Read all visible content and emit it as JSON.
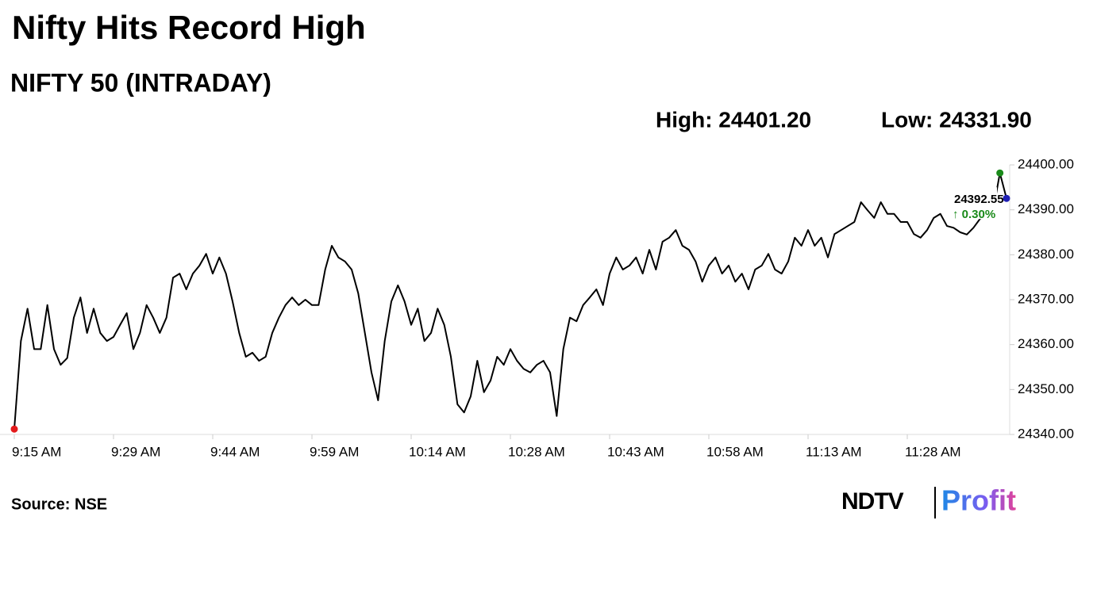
{
  "chart_data": {
    "type": "line",
    "title": "Nifty Hits Record High",
    "subtitle": "NIFTY 50 (INTRADAY)",
    "annotations": {
      "high": "High: 24401.20",
      "low": "Low: 24331.90",
      "last": "24392.55",
      "change": "↑ 0.30%"
    },
    "source": "Source: NSE",
    "logo": {
      "brand": "NDTV",
      "product": "Profit"
    },
    "categories": [
      "9:15 AM",
      null,
      null,
      null,
      null,
      null,
      null,
      null,
      null,
      null,
      null,
      null,
      null,
      null,
      null,
      "9:29 AM",
      null,
      null,
      null,
      null,
      null,
      null,
      null,
      null,
      null,
      null,
      null,
      null,
      null,
      null,
      "9:44 AM",
      null,
      null,
      null,
      null,
      null,
      null,
      null,
      null,
      null,
      null,
      null,
      null,
      null,
      null,
      "9:59 AM",
      null,
      null,
      null,
      null,
      null,
      null,
      null,
      null,
      null,
      null,
      null,
      null,
      null,
      null,
      "10:14 AM",
      null,
      null,
      null,
      null,
      null,
      null,
      null,
      null,
      null,
      null,
      null,
      null,
      null,
      null,
      "10:28 AM",
      null,
      null,
      null,
      null,
      null,
      null,
      null,
      null,
      null,
      null,
      null,
      null,
      null,
      null,
      "10:43 AM",
      null,
      null,
      null,
      null,
      null,
      null,
      null,
      null,
      null,
      null,
      null,
      null,
      null,
      null,
      "10:58 AM",
      null,
      null,
      null,
      null,
      null,
      null,
      null,
      null,
      null,
      null,
      null,
      null,
      null,
      null,
      "11:13 AM",
      null,
      null,
      null,
      null,
      null,
      null,
      null,
      null,
      null,
      null,
      null,
      null,
      null,
      null,
      "11:28 AM",
      null,
      null,
      null,
      null,
      null,
      null,
      null,
      null,
      null,
      null,
      null,
      null,
      null,
      null,
      null
    ],
    "series": [
      {
        "name": "NIFTY 50",
        "color": "#000000",
        "values": [
          24341.2,
          24360.8,
          24368,
          24359,
          24359,
          24368.8,
          24359,
          24355.5,
          24357,
          24366,
          24370.5,
          24362.6,
          24368,
          24362.6,
          24360.8,
          24361.7,
          24364.4,
          24367,
          24359,
          24362.6,
          24368.8,
          24366,
          24362.6,
          24366,
          24374.9,
          24375.8,
          24372.3,
          24375.8,
          24377.6,
          24380.2,
          24375.8,
          24379.4,
          24375.8,
          24369.6,
          24362.6,
          24357.3,
          24358.2,
          24356.4,
          24357.3,
          24362.6,
          24366,
          24368.8,
          24370.5,
          24368.8,
          24370,
          24368.8,
          24368.8,
          24376.7,
          24382,
          24379.4,
          24378.5,
          24376.7,
          24371.4,
          24362.6,
          24353.8,
          24347.6,
          24360.8,
          24369.6,
          24373.2,
          24369.6,
          24364.4,
          24368,
          24360.8,
          24362.6,
          24368,
          24364.4,
          24357.3,
          24346.7,
          24344.9,
          24348.5,
          24356.4,
          24349.4,
          24352,
          24357.3,
          24355.5,
          24359,
          24356.4,
          24354.6,
          24353.8,
          24355.5,
          24356.4,
          24353.8,
          24344.1,
          24359,
          24366,
          24365.2,
          24368.8,
          24370.5,
          24372.3,
          24368.8,
          24375.8,
          24379.4,
          24376.7,
          24377.6,
          24379.4,
          24375.8,
          24381.1,
          24376.7,
          24382.9,
          24383.8,
          24385.5,
          24382,
          24381.1,
          24378.5,
          24374,
          24377.6,
          24379.4,
          24375.8,
          24377.6,
          24374,
          24375.8,
          24372.3,
          24376.7,
          24377.6,
          24380.2,
          24376.7,
          24375.8,
          24378.5,
          24383.8,
          24382,
          24385.5,
          24382,
          24383.8,
          24379.4,
          24384.6,
          24385.5,
          24386.4,
          24387.3,
          24391.7,
          24389.9,
          24388.2,
          24391.7,
          24389.1,
          24389.1,
          24387.3,
          24387.3,
          24384.6,
          24383.8,
          24385.5,
          24388.2,
          24389.1,
          24386.4,
          24386,
          24385,
          24384.5,
          24386,
          24388,
          24389,
          24390,
          24398.2,
          24392.55
        ]
      }
    ],
    "markers": {
      "low_color": "#e31a1c",
      "high_color": "#1a8a1a",
      "last_color": "#1f1fb4"
    },
    "change_color": "#1a8a1a",
    "ylim": [
      24340,
      24400
    ],
    "yticks": [
      {
        "value": 24340,
        "label": "24340.00"
      },
      {
        "value": 24350,
        "label": "24350.00"
      },
      {
        "value": 24360,
        "label": "24360.00"
      },
      {
        "value": 24370,
        "label": "24370.00"
      },
      {
        "value": 24380,
        "label": "24380.00"
      },
      {
        "value": 24390,
        "label": "24390.00"
      },
      {
        "value": 24400,
        "label": "24400.00"
      }
    ],
    "grid": false
  }
}
